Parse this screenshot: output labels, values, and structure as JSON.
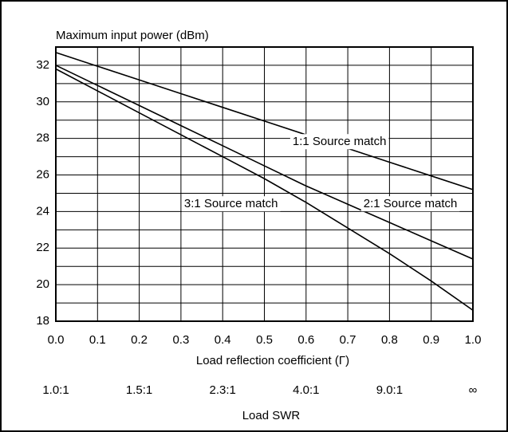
{
  "chart_data": {
    "type": "line",
    "title": "Maximum input power (dBm)",
    "xlabel": "Load reflection coefficient (Γ)",
    "x": [
      0,
      0.1,
      0.2,
      0.3,
      0.4,
      0.5,
      0.6,
      0.7,
      0.8,
      0.9,
      1.0
    ],
    "series": [
      {
        "name": "1:1 Source match",
        "color": "#000000",
        "values": [
          32.7,
          31.95,
          31.2,
          30.45,
          29.7,
          28.95,
          28.2,
          27.45,
          26.7,
          25.95,
          25.2
        ]
      },
      {
        "name": "2:1 Source match",
        "color": "#000000",
        "values": [
          32.0,
          30.9,
          29.8,
          28.7,
          27.6,
          26.5,
          25.4,
          24.4,
          23.4,
          22.4,
          21.4
        ]
      },
      {
        "name": "3:1 Source match",
        "color": "#000000",
        "values": [
          31.8,
          30.6,
          29.4,
          28.2,
          27.0,
          25.8,
          24.5,
          23.1,
          21.7,
          20.2,
          18.6
        ]
      }
    ],
    "xlim": [
      0,
      1
    ],
    "ylim": [
      18,
      33
    ],
    "xticks": [
      {
        "value": 0,
        "label": "0.0"
      },
      0.1,
      0.2,
      0.3,
      0.4,
      0.5,
      0.6,
      0.7,
      0.8,
      0.9,
      {
        "value": 1,
        "label": "1.0"
      }
    ],
    "yticks": [
      18,
      20,
      22,
      24,
      26,
      28,
      30,
      32
    ],
    "y_minor_grid": [
      19,
      21,
      23,
      25,
      27,
      29,
      31,
      33
    ],
    "grid": true,
    "secondary_xlabel": "Load SWR",
    "secondary_xticks": [
      {
        "value": 0,
        "label": "1.0:1"
      },
      {
        "value": 0.2,
        "label": "1.5:1"
      },
      {
        "value": 0.4,
        "label": "2.3:1"
      },
      {
        "value": 0.6,
        "label": "4.0:1"
      },
      {
        "value": 0.8,
        "label": "9.0:1"
      },
      {
        "value": 1,
        "label": "∞"
      }
    ]
  }
}
